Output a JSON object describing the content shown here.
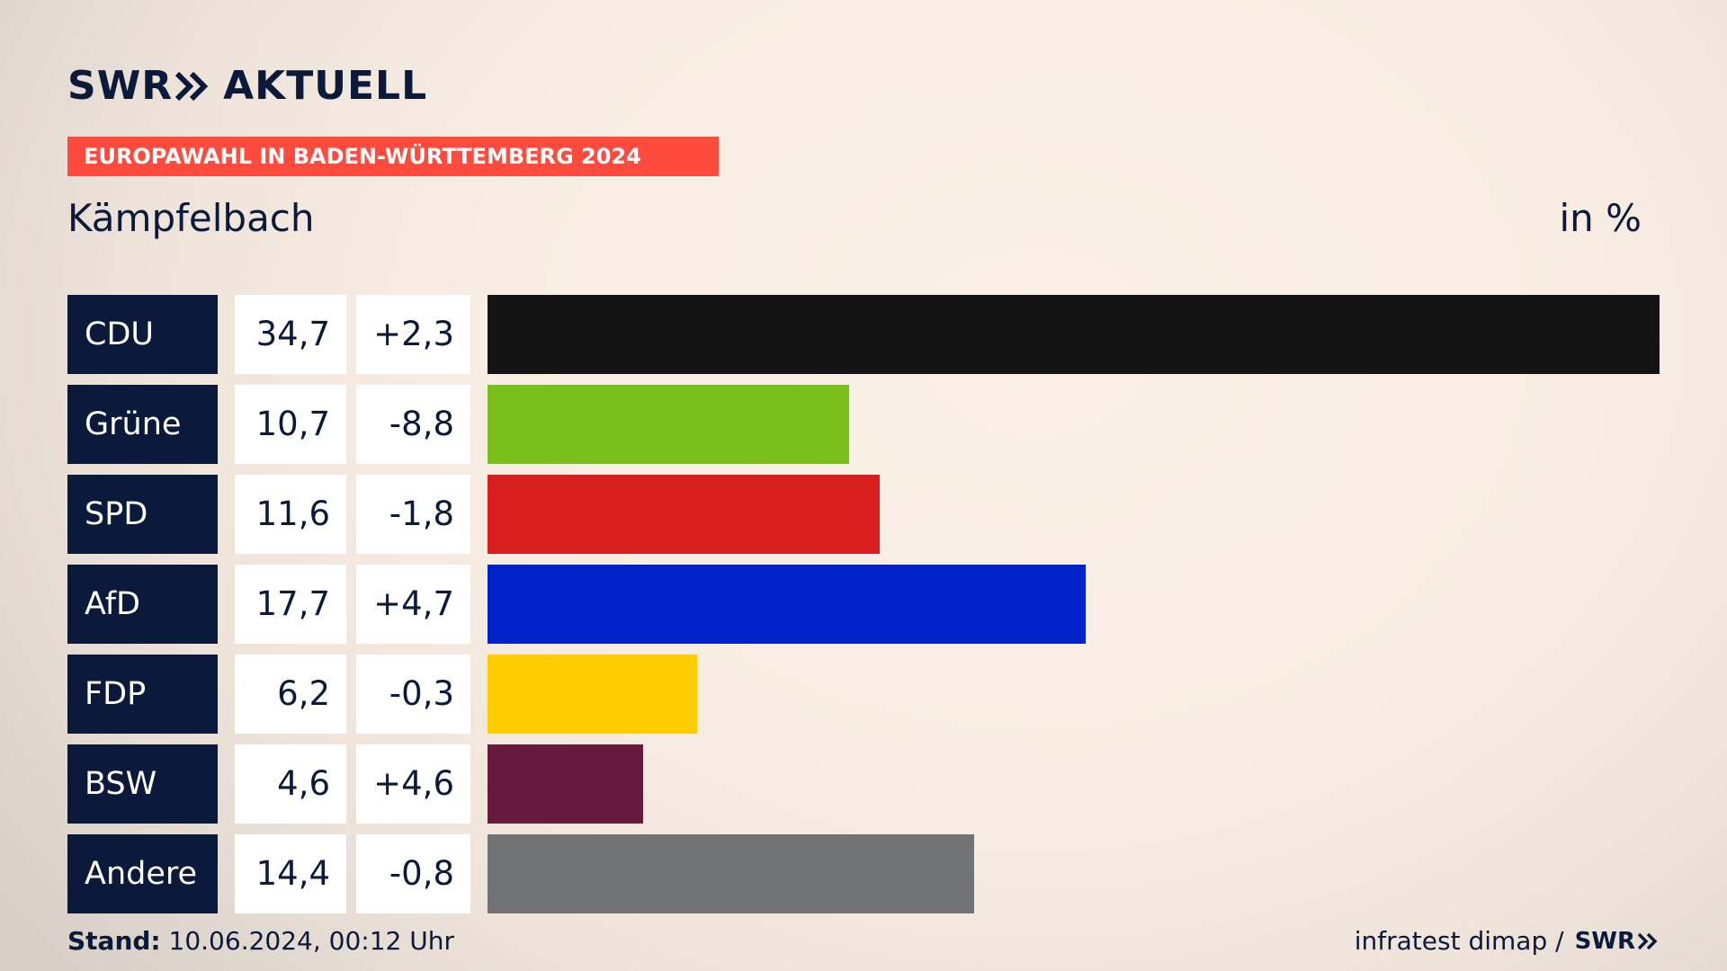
{
  "brand": {
    "swr": "SWR",
    "aktuell": "AKTUELL",
    "color": "#0b1a3a"
  },
  "banner": {
    "text": "EUROPAWAHL IN BADEN-WÜRTTEMBERG 2024",
    "color": "#ff4b3e"
  },
  "header": {
    "place": "Kämpfelbach",
    "unit": "in %"
  },
  "footer": {
    "stand_label": "Stand:",
    "stand_value": "10.06.2024, 00:12 Uhr",
    "source": "infratest dimap /",
    "logo": "SWR"
  },
  "chart_data": {
    "type": "bar",
    "orientation": "horizontal",
    "title": "EUROPAWAHL IN BADEN-WÜRTTEMBERG 2024",
    "subtitle": "Kämpfelbach",
    "unit": "in %",
    "xlim": [
      0,
      34.7
    ],
    "categories": [
      "CDU",
      "Grüne",
      "SPD",
      "AfD",
      "FDP",
      "BSW",
      "Andere"
    ],
    "values": [
      34.7,
      10.7,
      11.6,
      17.7,
      6.2,
      4.6,
      14.4
    ],
    "value_labels": [
      "34,7",
      "10,7",
      "11,6",
      "17,7",
      "6,2",
      "4,6",
      "14,4"
    ],
    "change_labels": [
      "+2,3",
      "-8,8",
      "-1,8",
      "+4,7",
      "-0,3",
      "+4,6",
      "-0,8"
    ],
    "changes": [
      2.3,
      -8.8,
      -1.8,
      4.7,
      -0.3,
      4.6,
      -0.8
    ],
    "colors": [
      "#141414",
      "#7bbf1c",
      "#d71f1f",
      "#0022c8",
      "#ffcc00",
      "#661a3d",
      "#717274"
    ]
  }
}
